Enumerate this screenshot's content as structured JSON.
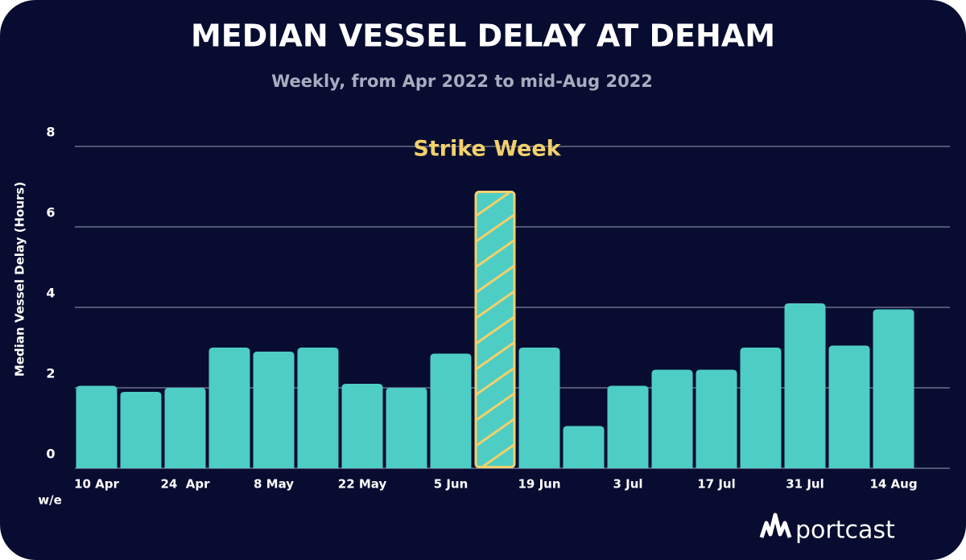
{
  "chart_data": {
    "type": "bar",
    "title": "MEDIAN VESSEL DELAY AT DEHAM",
    "subtitle": "Weekly, from Apr 2022 to mid-Aug 2022",
    "y_label": "Median Vessel Delay (Hours)",
    "x_label": "w/e",
    "categories": [
      "10 Apr",
      null,
      "24  Apr",
      null,
      "8 May",
      null,
      "22 May",
      null,
      "5 Jun",
      null,
      "19 Jun",
      null,
      "3 Jul",
      null,
      "17 Jul",
      null,
      "31 Jul",
      null,
      "14 Aug"
    ],
    "values": [
      2.05,
      1.9,
      2.0,
      3.0,
      2.9,
      3.0,
      2.1,
      2.0,
      2.85,
      6.9,
      3.0,
      1.05,
      2.05,
      2.45,
      2.45,
      3.0,
      4.1,
      3.05,
      3.95
    ],
    "color": "#4ecdc4",
    "ylim": [
      0,
      8
    ],
    "yticks": [
      0,
      2,
      4,
      6,
      8
    ],
    "grid": true,
    "annotation": {
      "text": "Strike Week",
      "index": 9,
      "color": "#f2d06b"
    },
    "brand": "portcast"
  }
}
